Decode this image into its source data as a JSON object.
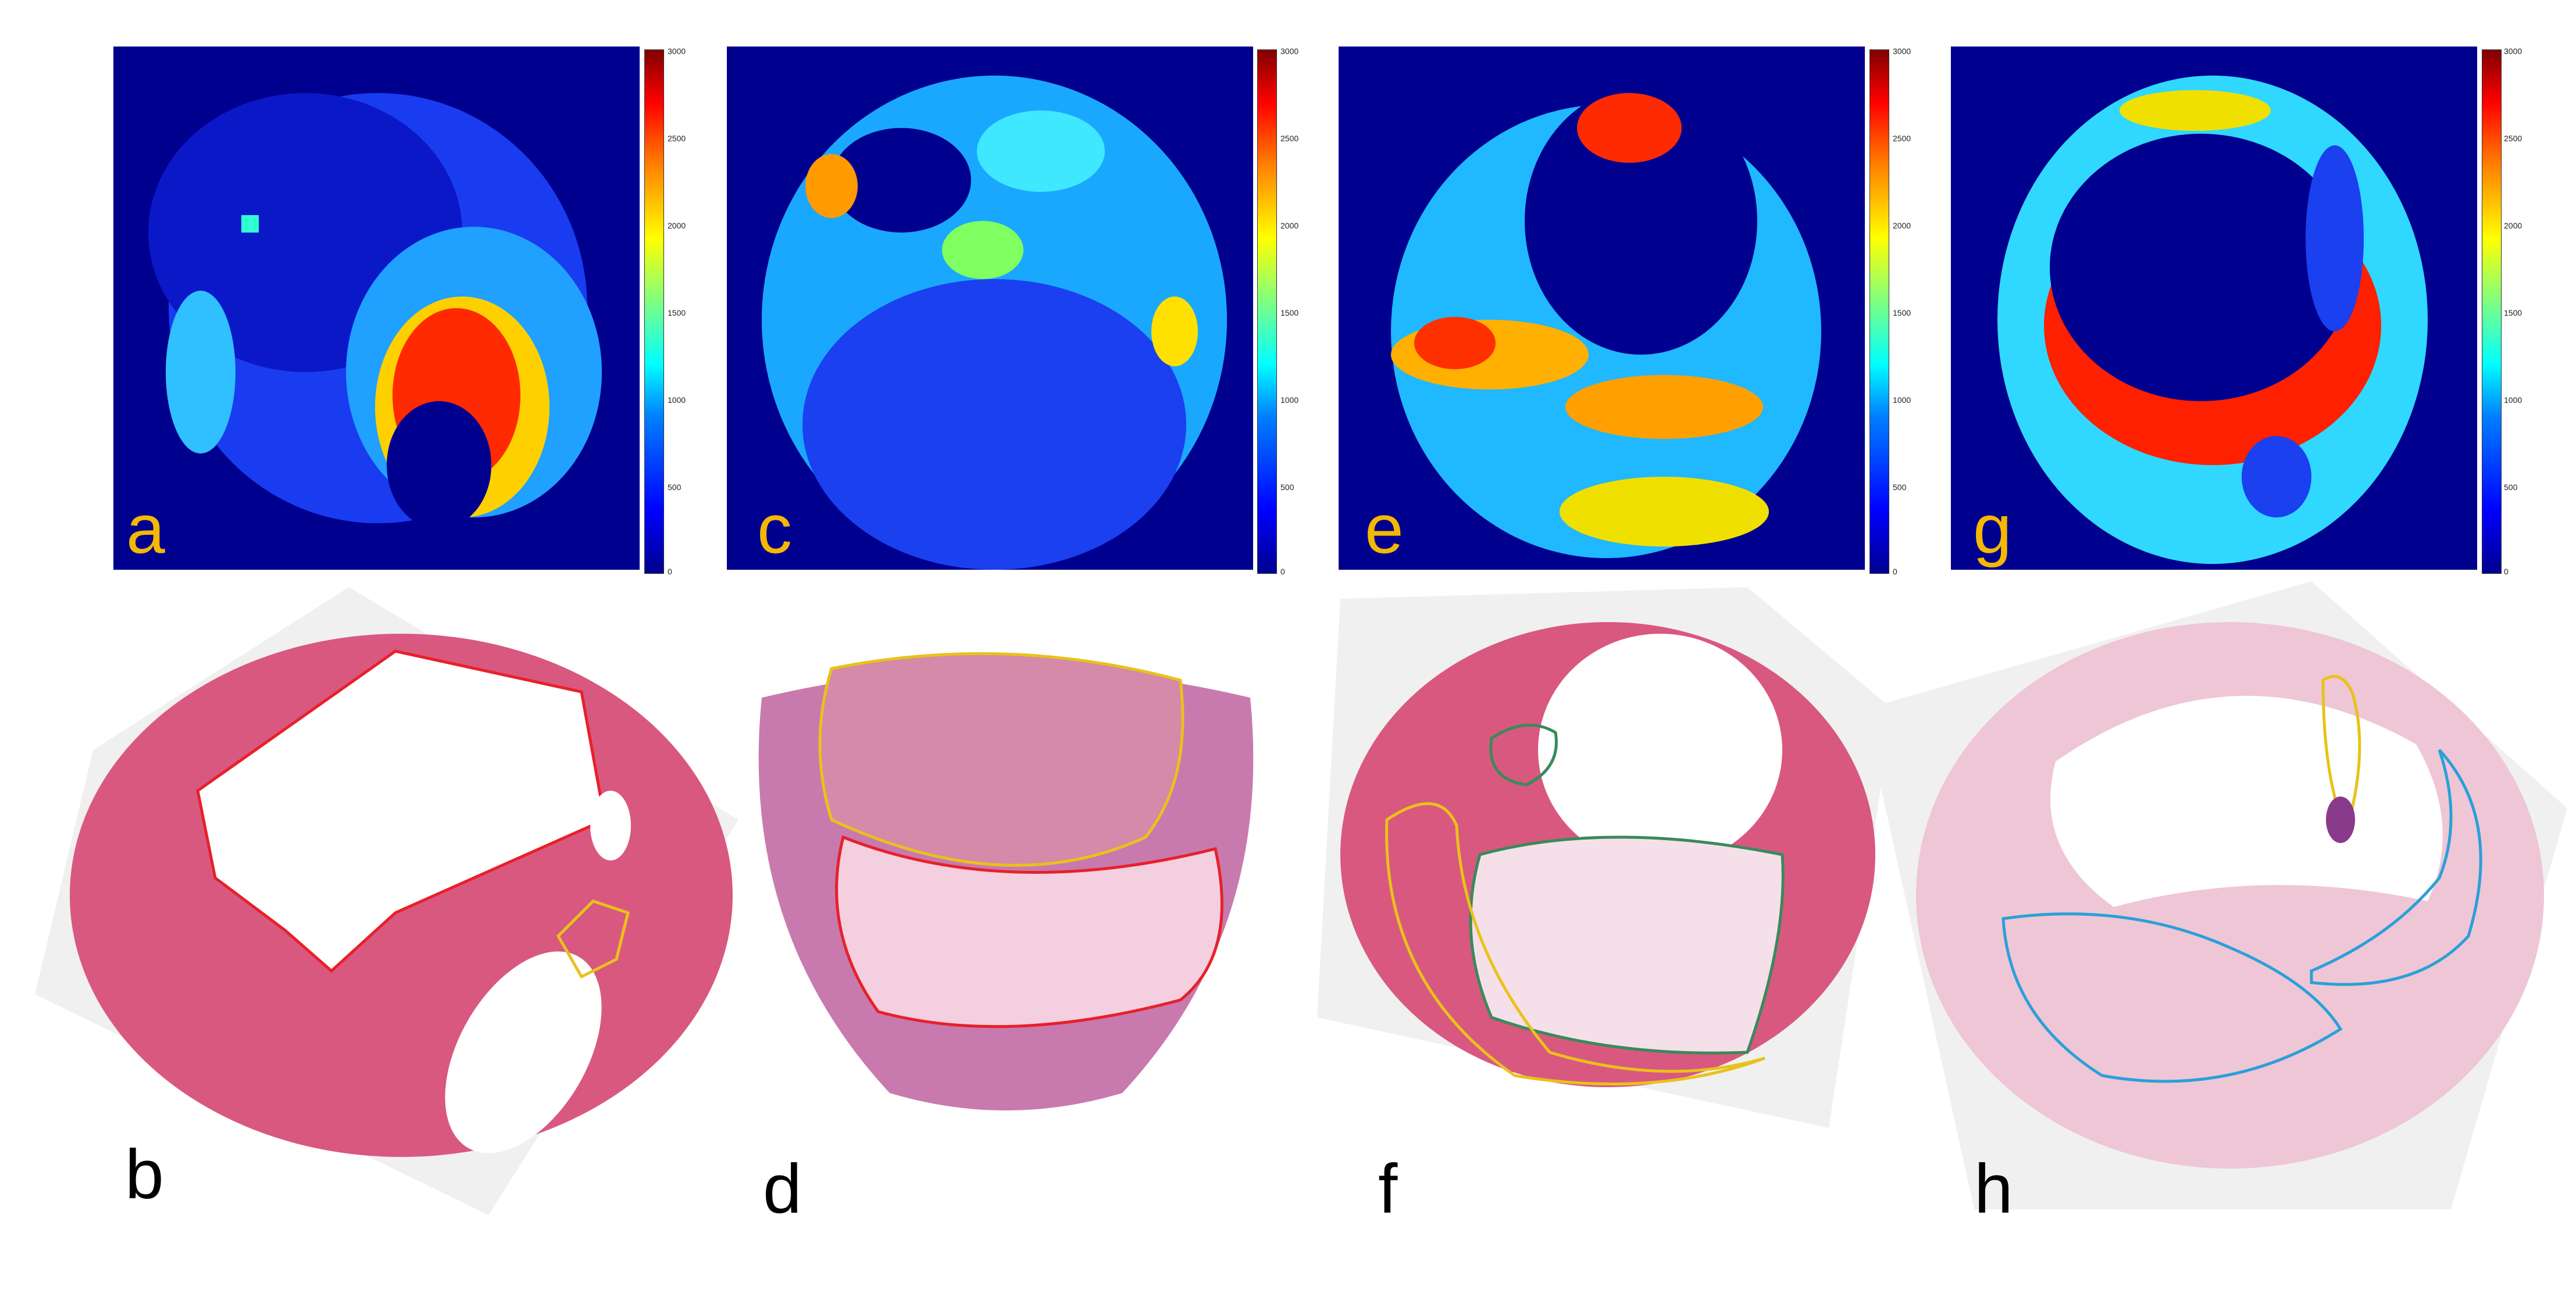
{
  "panels": {
    "a": "a",
    "b": "b",
    "c": "c",
    "d": "d",
    "e": "e",
    "f": "f",
    "g": "g",
    "h": "h"
  },
  "colorbar_ticks": [
    "3000",
    "2500",
    "2000",
    "1500",
    "1000",
    "500",
    "0"
  ],
  "colors": {
    "heatmap_background": "#00008f",
    "letter_orange": "#f5b800",
    "stain_pink": "#d9587f",
    "outline_red": "#e8202a",
    "outline_yellow": "#e8c21a",
    "outline_green": "#3a8a5a",
    "outline_cyan": "#2aa0d8"
  }
}
